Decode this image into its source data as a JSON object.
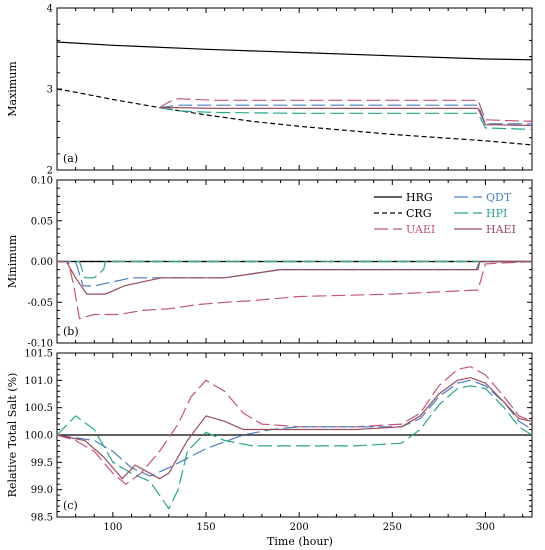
{
  "chart_data": [
    {
      "type": "line",
      "panel_label": "(a)",
      "ylabel": "Maximum",
      "xlim": [
        70,
        325
      ],
      "ylim": [
        2,
        4
      ],
      "yticks": [
        "2",
        "3",
        "4"
      ],
      "series": [
        {
          "name": "HRG",
          "color": "#000000",
          "dash": "solid",
          "x": [
            70,
            100,
            150,
            200,
            250,
            300,
            325
          ],
          "y": [
            3.58,
            3.54,
            3.49,
            3.45,
            3.41,
            3.37,
            3.36
          ]
        },
        {
          "name": "CRG",
          "color": "#000000",
          "dash": "dashed",
          "x": [
            70,
            80,
            100,
            125,
            150,
            175,
            200,
            250,
            300,
            325
          ],
          "y": [
            3.0,
            2.96,
            2.87,
            2.77,
            2.68,
            2.6,
            2.54,
            2.44,
            2.36,
            2.31
          ]
        },
        {
          "name": "UAEI",
          "color": "#c2557a",
          "dash": "longdash",
          "x": [
            125,
            130,
            135,
            155,
            200,
            250,
            296,
            300,
            325
          ],
          "y": [
            2.77,
            2.84,
            2.88,
            2.86,
            2.86,
            2.86,
            2.86,
            2.62,
            2.6
          ]
        },
        {
          "name": "QDT",
          "color": "#4a7fc0",
          "dash": "longdash",
          "x": [
            125,
            135,
            155,
            200,
            250,
            296,
            300,
            325
          ],
          "y": [
            2.77,
            2.8,
            2.8,
            2.8,
            2.8,
            2.8,
            2.57,
            2.57
          ]
        },
        {
          "name": "HPI",
          "color": "#2aa58e",
          "dash": "longdash",
          "x": [
            125,
            135,
            155,
            200,
            250,
            296,
            300,
            325
          ],
          "y": [
            2.77,
            2.73,
            2.71,
            2.7,
            2.7,
            2.7,
            2.52,
            2.5
          ]
        },
        {
          "name": "HAEI",
          "color": "#9a4d5c",
          "dash": "solid",
          "x": [
            125,
            135,
            155,
            200,
            250,
            296,
            300,
            325
          ],
          "y": [
            2.77,
            2.77,
            2.76,
            2.76,
            2.76,
            2.76,
            2.56,
            2.55
          ]
        }
      ]
    },
    {
      "type": "line",
      "panel_label": "(b)",
      "ylabel": "Minimum",
      "xlim": [
        70,
        325
      ],
      "ylim": [
        -0.1,
        0.1
      ],
      "yticks": [
        "-0.10",
        "-0.05",
        "0.00",
        "0.05",
        "0.10"
      ],
      "legend": {
        "placement": "top-right",
        "columns": 2
      },
      "series": [
        {
          "name": "HRG",
          "color": "#000000",
          "dash": "solid",
          "x": [
            70,
            325
          ],
          "y": [
            0.0,
            0.0
          ]
        },
        {
          "name": "CRG",
          "color": "#000000",
          "dash": "dashed",
          "x": [
            70,
            325
          ],
          "y": [
            0.0,
            0.0
          ]
        },
        {
          "name": "UAEI",
          "color": "#c2557a",
          "dash": "longdash",
          "x": [
            70,
            76,
            79,
            82,
            90,
            103,
            116,
            130,
            145,
            160,
            175,
            200,
            250,
            296,
            300,
            325
          ],
          "y": [
            0.0,
            0.0,
            -0.03,
            -0.07,
            -0.065,
            -0.065,
            -0.06,
            -0.058,
            -0.053,
            -0.05,
            -0.048,
            -0.043,
            -0.04,
            -0.035,
            -0.003,
            0.0
          ]
        },
        {
          "name": "QDT",
          "color": "#4a7fc0",
          "dash": "longdash",
          "x": [
            70,
            80,
            84,
            90,
            110,
            160,
            190,
            250,
            295,
            297,
            325
          ],
          "y": [
            0.0,
            0.0,
            -0.03,
            -0.03,
            -0.02,
            -0.02,
            -0.01,
            -0.01,
            -0.01,
            0.0,
            0.0
          ]
        },
        {
          "name": "HPI",
          "color": "#2aa58e",
          "dash": "longdash",
          "x": [
            70,
            82,
            85,
            90,
            95,
            96,
            325
          ],
          "y": [
            0.0,
            0.0,
            -0.02,
            -0.02,
            -0.01,
            0.0,
            0.0
          ]
        },
        {
          "name": "HAEI",
          "color": "#9a4d5c",
          "dash": "solid",
          "x": [
            70,
            75,
            80,
            86,
            96,
            106,
            126,
            160,
            190,
            290,
            296,
            297,
            325
          ],
          "y": [
            0.0,
            0.0,
            -0.02,
            -0.04,
            -0.04,
            -0.03,
            -0.02,
            -0.02,
            -0.01,
            -0.01,
            -0.01,
            0.0,
            0.0
          ]
        }
      ]
    },
    {
      "type": "line",
      "panel_label": "(c)",
      "ylabel": "Relative Total Salt (%)",
      "xlabel": "Time (hour)",
      "xlim": [
        70,
        325
      ],
      "ylim": [
        98.5,
        101.5
      ],
      "xticks": [
        "100",
        "150",
        "200",
        "250",
        "300"
      ],
      "yticks": [
        "98.5",
        "99.0",
        "99.5",
        "100.0",
        "100.5",
        "101.0",
        "101.5"
      ],
      "series": [
        {
          "name": "HRG",
          "color": "#000000",
          "dash": "solid",
          "x": [
            70,
            325
          ],
          "y": [
            100.0,
            100.0
          ]
        },
        {
          "name": "UAEI",
          "color": "#c2557a",
          "dash": "longdash",
          "x": [
            70,
            80,
            90,
            100,
            107,
            115,
            125,
            135,
            142,
            150,
            160,
            170,
            180,
            200,
            230,
            255,
            265,
            275,
            285,
            292,
            300,
            310,
            318,
            325
          ],
          "y": [
            100.0,
            99.9,
            99.7,
            99.3,
            99.1,
            99.3,
            99.7,
            100.2,
            100.7,
            101.0,
            100.8,
            100.4,
            100.2,
            100.15,
            100.15,
            100.2,
            100.4,
            100.9,
            101.2,
            101.25,
            101.1,
            100.7,
            100.35,
            100.25
          ]
        },
        {
          "name": "QDT",
          "color": "#4a7fc0",
          "dash": "longdash",
          "x": [
            70,
            90,
            100,
            110,
            120,
            130,
            150,
            170,
            185,
            200,
            230,
            255,
            265,
            275,
            285,
            292,
            300,
            310,
            318,
            325
          ],
          "y": [
            100.0,
            99.9,
            99.7,
            99.4,
            99.25,
            99.4,
            99.75,
            100.0,
            100.1,
            100.15,
            100.15,
            100.15,
            100.3,
            100.7,
            100.95,
            101.0,
            100.9,
            100.6,
            100.25,
            100.1
          ]
        },
        {
          "name": "HPI",
          "color": "#2aa58e",
          "dash": "longdash",
          "x": [
            70,
            80,
            90,
            100,
            110,
            120,
            125,
            130,
            135,
            140,
            150,
            160,
            175,
            200,
            230,
            255,
            265,
            275,
            285,
            292,
            300,
            310,
            318,
            325
          ],
          "y": [
            100.0,
            100.35,
            100.1,
            99.5,
            99.3,
            99.15,
            98.9,
            98.65,
            99.0,
            99.7,
            100.05,
            99.9,
            99.8,
            99.8,
            99.8,
            99.85,
            100.1,
            100.55,
            100.85,
            100.9,
            100.85,
            100.5,
            100.15,
            100.0
          ]
        },
        {
          "name": "HAEI",
          "color": "#9a4d5c",
          "dash": "solid",
          "x": [
            70,
            85,
            95,
            105,
            112,
            120,
            125,
            130,
            140,
            150,
            160,
            170,
            180,
            200,
            230,
            255,
            265,
            275,
            285,
            292,
            300,
            310,
            318,
            325
          ],
          "y": [
            100.0,
            99.9,
            99.6,
            99.2,
            99.45,
            99.3,
            99.2,
            99.3,
            99.9,
            100.35,
            100.25,
            100.1,
            100.1,
            100.1,
            100.1,
            100.15,
            100.35,
            100.75,
            101.0,
            101.05,
            100.95,
            100.6,
            100.3,
            100.25
          ]
        }
      ]
    }
  ]
}
